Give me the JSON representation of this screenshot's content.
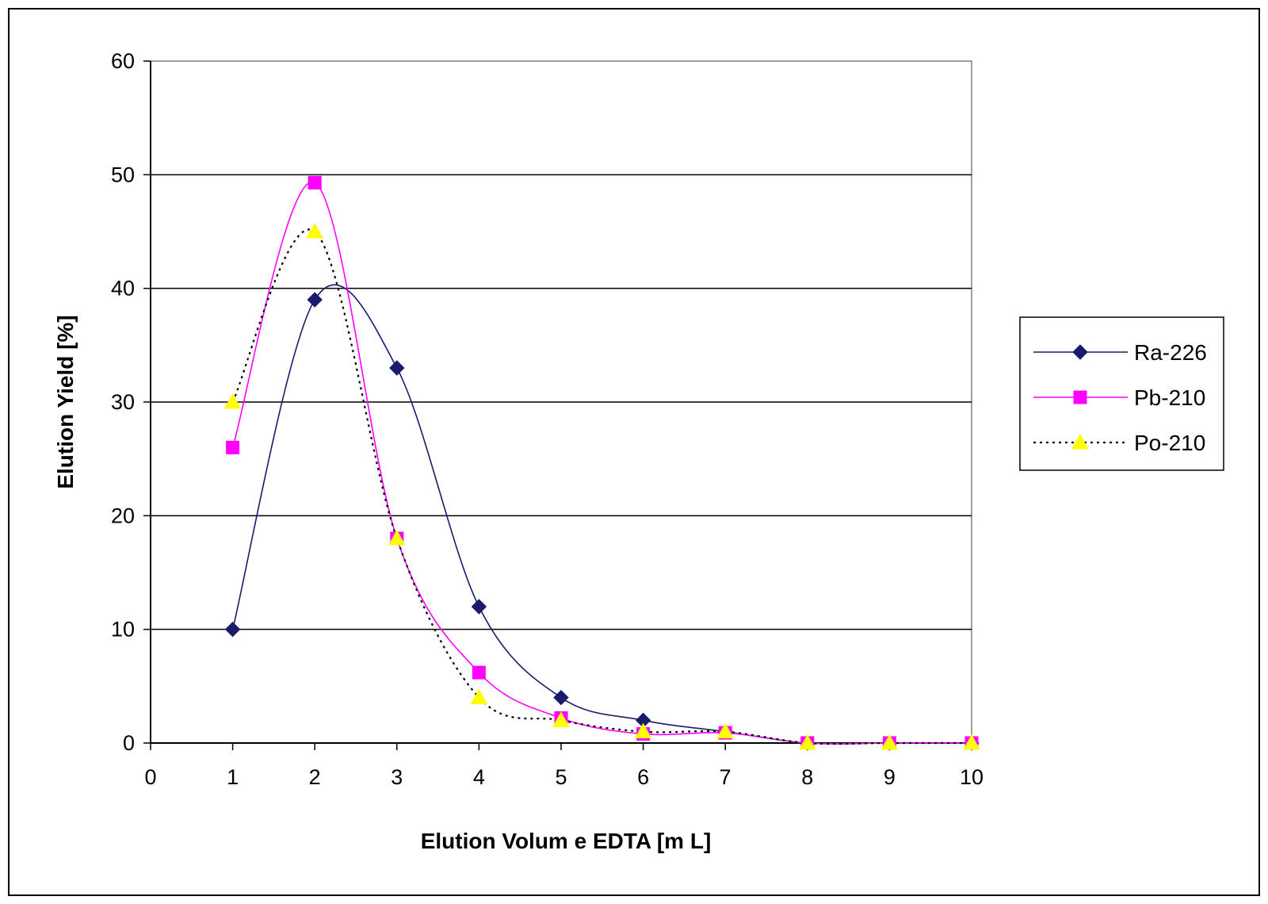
{
  "chart_data": {
    "type": "line",
    "title": "",
    "xlabel": "Elution Volum e EDTA [m L]",
    "ylabel": "Elution Yield [%]",
    "xlim": [
      0,
      10
    ],
    "ylim": [
      0,
      60
    ],
    "xticks": [
      "0",
      "1",
      "2",
      "3",
      "4",
      "5",
      "6",
      "7",
      "8",
      "9",
      "10"
    ],
    "yticks": [
      "0",
      "10",
      "20",
      "30",
      "40",
      "50",
      "60"
    ],
    "grid": "horizontal",
    "smoothed": true,
    "legend_position": "right",
    "x": [
      1,
      2,
      3,
      4,
      5,
      6,
      7,
      8,
      9,
      10
    ],
    "series": [
      {
        "name": "Ra-226",
        "values": [
          10,
          39,
          33,
          12,
          4,
          2,
          1,
          0,
          0,
          0
        ],
        "color": "#1a1a6e",
        "marker": "diamond",
        "line_style": "solid"
      },
      {
        "name": "Pb-210",
        "values": [
          26,
          49.3,
          18,
          6.2,
          2.2,
          0.8,
          0.9,
          0,
          0,
          0
        ],
        "color": "#ff00ff",
        "marker": "square",
        "line_style": "solid"
      },
      {
        "name": "Po-210",
        "values": [
          30,
          45,
          18,
          4,
          2,
          1,
          1,
          0,
          0,
          0
        ],
        "color": "#ffff00",
        "line_color": "#000000",
        "marker": "triangle",
        "line_style": "dotted"
      }
    ]
  }
}
